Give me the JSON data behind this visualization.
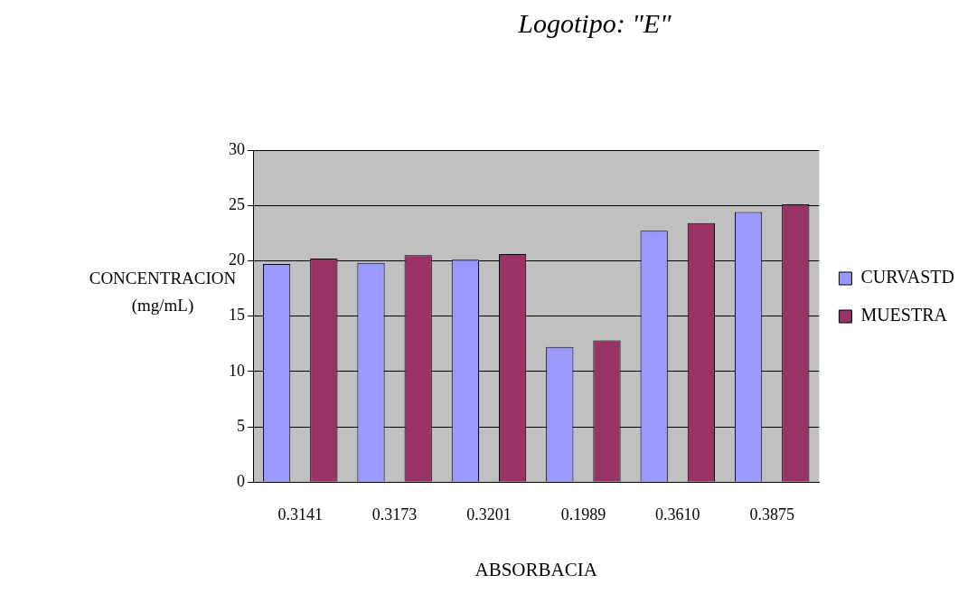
{
  "chart_data": {
    "type": "bar",
    "title": "Logotipo: \"E\"",
    "xlabel": "ABSORBACIA",
    "ylabel": "CONCENTRACION (mg/mL)",
    "categories": [
      "0.3141",
      "0.3173",
      "0.3201",
      "0.1989",
      "0.3610",
      "0.3875"
    ],
    "series": [
      {
        "name": "CURVASTD",
        "color": "#9999ff",
        "values": [
          19.7,
          19.8,
          20.1,
          12.2,
          22.7,
          24.4
        ]
      },
      {
        "name": "MUESTRA",
        "color": "#993366",
        "values": [
          20.2,
          20.5,
          20.6,
          12.8,
          23.4,
          25.1
        ]
      }
    ],
    "ylim": [
      0,
      30
    ],
    "yticks": [
      0,
      5,
      10,
      15,
      20,
      25,
      30
    ],
    "grid": "y",
    "legend": "right"
  }
}
